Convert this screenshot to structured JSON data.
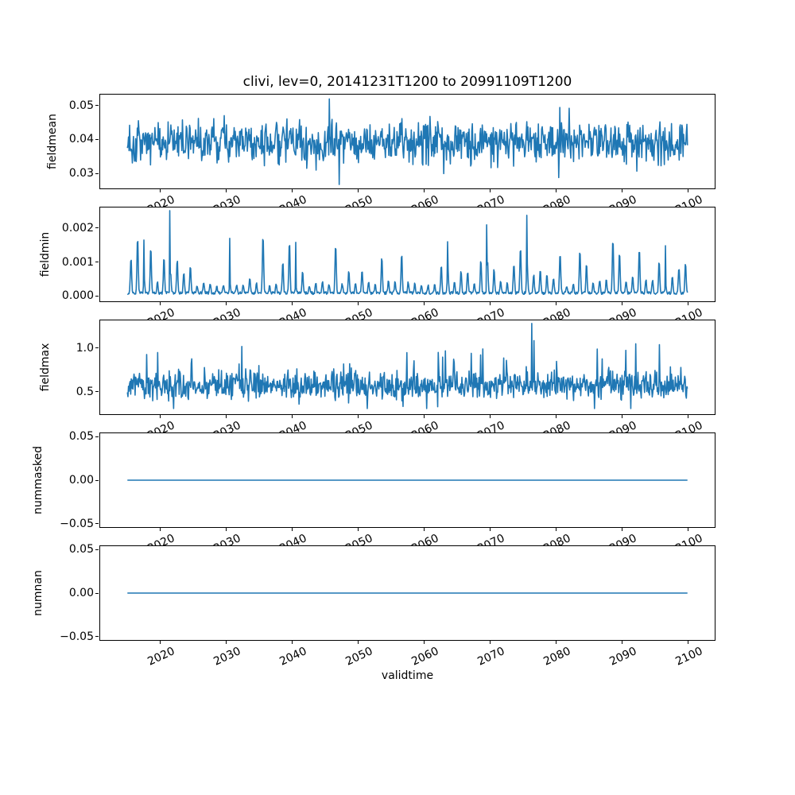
{
  "figure": {
    "background": "#ffffff",
    "text_color": "#000000",
    "line_color": "#1f77b4",
    "axis_color": "#000000"
  },
  "chart_data": {
    "type": "line",
    "title": "clivi, lev=0, 20141231T1200 to 20991109T1200",
    "xlabel": "validtime",
    "variable": "clivi",
    "level": "lev=0",
    "time_range": [
      "20141231T1200",
      "20991109T1200"
    ],
    "x_start": 2014.997,
    "x_end": 2099.861,
    "xlim": [
      2010.75,
      2104.11
    ],
    "xticks": [
      2020,
      2030,
      2040,
      2050,
      2060,
      2070,
      2080,
      2090,
      2100
    ],
    "xtick_labels": [
      "2020",
      "2030",
      "2040",
      "2050",
      "2060",
      "2070",
      "2080",
      "2090",
      "2100"
    ],
    "n_points": 1019,
    "seed": 1337,
    "legend": "none",
    "grid": false,
    "subplots": [
      {
        "ylabel": "fieldmean",
        "ylim": [
          0.0253,
          0.0535
        ],
        "yticks": [
          0.03,
          0.04,
          0.05
        ],
        "ytick_labels": [
          "0.03",
          "0.04",
          "0.05"
        ],
        "series": {
          "pattern": "noise",
          "base": 0.0393,
          "amp": 0.0058,
          "spike_p": 0.1,
          "spike_amp": 0.0062,
          "spike_bias": 0.5,
          "clamp": [
            0.0266,
            0.052
          ],
          "anomalies": [
            {
              "x": 2045.6,
              "y": 0.052
            },
            {
              "x": 2047.1,
              "y": 0.0267
            }
          ]
        }
      },
      {
        "ylabel": "fieldmin",
        "ylim": [
          -0.000188,
          0.002635
        ],
        "yticks": [
          0.0,
          0.001,
          0.002
        ],
        "ytick_labels": [
          "0.000",
          "0.001",
          "0.002"
        ],
        "series": {
          "pattern": "seasonal-spikes",
          "base": 4e-05,
          "noise": 8e-05,
          "year_amp_min": 0.00022,
          "year_amp_max": 0.00175,
          "spike_width_months": 1.1,
          "anomalies": [
            {
              "x": 2017.5,
              "y": 0.00165
            },
            {
              "x": 2021.45,
              "y": 0.00252
            },
            {
              "x": 2030.5,
              "y": 0.0017
            },
            {
              "x": 2040.5,
              "y": 0.00158
            },
            {
              "x": 2063.5,
              "y": 0.0016
            },
            {
              "x": 2069.4,
              "y": 0.0021
            },
            {
              "x": 2075.5,
              "y": 0.00238
            },
            {
              "x": 2096.5,
              "y": 0.00148
            }
          ]
        }
      },
      {
        "ylabel": "fieldmax",
        "ylim": [
          0.236,
          1.327
        ],
        "yticks": [
          0.5,
          1.0
        ],
        "ytick_labels": [
          "0.5",
          "1.0"
        ],
        "series": {
          "pattern": "noise",
          "base": 0.572,
          "amp": 0.155,
          "spike_p": 0.07,
          "spike_amp": 0.33,
          "spike_bias": 0.75,
          "clamp": [
            0.31,
            1.29
          ],
          "anomalies": [
            {
              "x": 2019.6,
              "y": 0.95
            },
            {
              "x": 2032.3,
              "y": 1.02
            },
            {
              "x": 2063.2,
              "y": 0.97
            },
            {
              "x": 2076.3,
              "y": 1.283
            },
            {
              "x": 2086.2,
              "y": 0.99
            },
            {
              "x": 2092.0,
              "y": 1.05
            },
            {
              "x": 2095.6,
              "y": 1.04
            }
          ]
        }
      },
      {
        "ylabel": "nummasked",
        "ylim": [
          -0.055,
          0.055
        ],
        "yticks": [
          -0.05,
          0.0,
          0.05
        ],
        "ytick_labels": [
          "−0.05",
          "0.00",
          "0.05"
        ],
        "series": {
          "pattern": "constant",
          "value": 0.0,
          "anomalies": []
        }
      },
      {
        "ylabel": "numnan",
        "ylim": [
          -0.055,
          0.055
        ],
        "yticks": [
          -0.05,
          0.0,
          0.05
        ],
        "ytick_labels": [
          "−0.05",
          "0.00",
          "0.05"
        ],
        "series": {
          "pattern": "constant",
          "value": 0.0,
          "anomalies": []
        }
      }
    ]
  }
}
